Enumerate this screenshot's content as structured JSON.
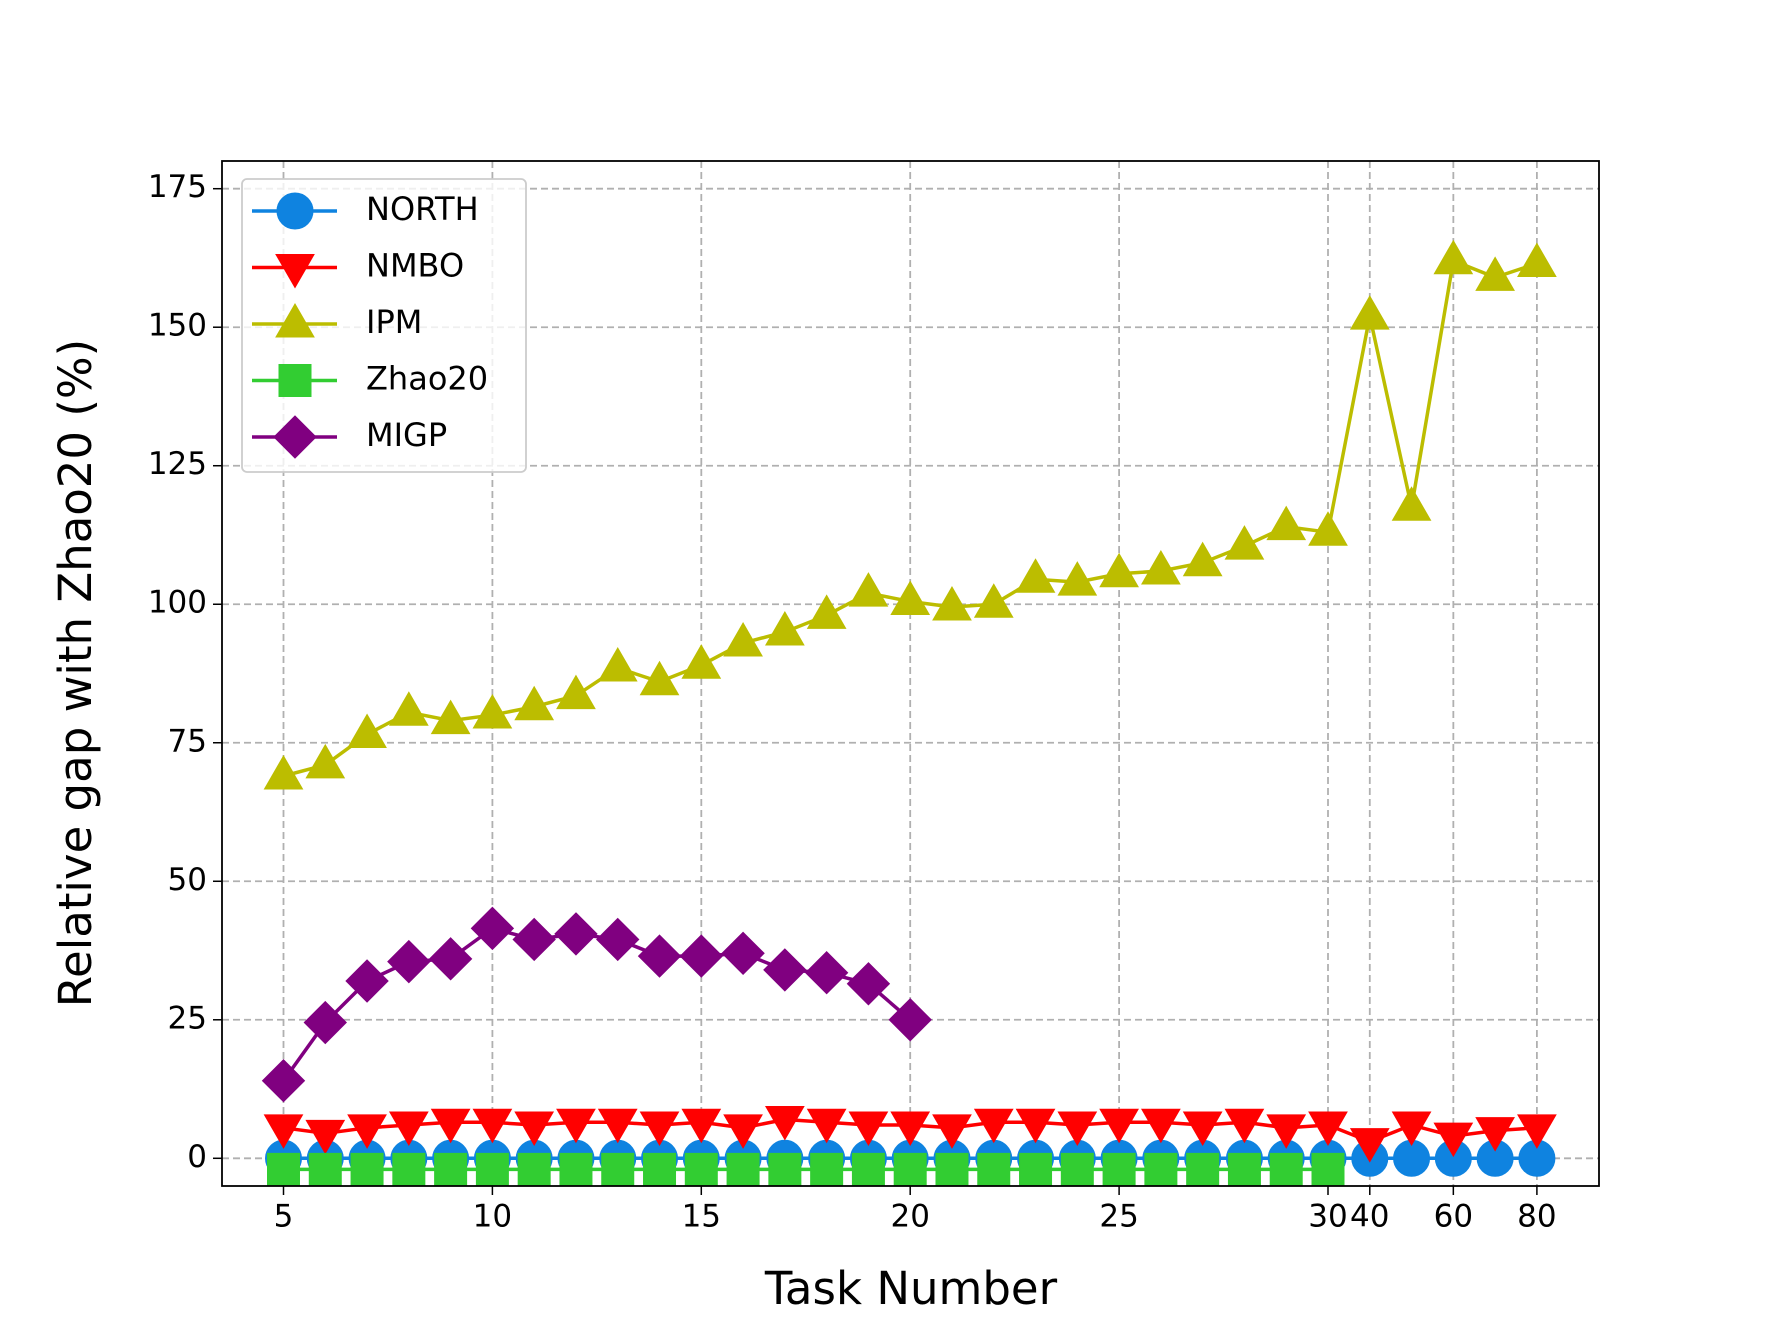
{
  "chart_data": {
    "type": "line",
    "xlabel": "Task Number",
    "ylabel": "Relative gap with Zhao20 (%)",
    "categories": [
      "5",
      null,
      null,
      null,
      null,
      "10",
      null,
      null,
      null,
      null,
      "15",
      null,
      null,
      null,
      null,
      "20",
      null,
      null,
      null,
      null,
      "25",
      null,
      null,
      null,
      null,
      "30",
      "40",
      null,
      "60",
      null,
      "80"
    ],
    "ylim": [
      -5,
      180
    ],
    "yticks": [
      0,
      25,
      50,
      75,
      100,
      125,
      150,
      175
    ],
    "grid": true,
    "legend": "upper left",
    "series": [
      {
        "name": "NORTH",
        "color": "#0f83e0",
        "marker": "circle",
        "values": [
          0,
          0,
          0,
          0,
          0,
          0,
          0,
          0,
          0,
          0,
          0,
          0,
          0,
          0,
          0,
          0,
          0,
          0,
          0,
          0,
          0,
          0,
          0,
          0,
          0,
          0,
          0,
          0,
          0,
          0,
          0
        ]
      },
      {
        "name": "NMBO",
        "color": "#ff0000",
        "marker": "triangle-down",
        "values": [
          5.5,
          4.5,
          5.5,
          6,
          6.5,
          6.5,
          6,
          6.5,
          6.5,
          6,
          6.5,
          5.5,
          7,
          6.5,
          6,
          6,
          5.5,
          6.5,
          6.5,
          6,
          6.5,
          6.5,
          6,
          6.5,
          5.5,
          6,
          3,
          6,
          4,
          5,
          5.5
        ]
      },
      {
        "name": "IPM",
        "color": "#bcbd00",
        "marker": "triangle-up",
        "values": [
          69,
          71,
          76.5,
          80.5,
          79,
          80,
          81.5,
          83.5,
          88.5,
          86,
          89,
          93,
          95,
          98,
          102,
          100.5,
          99.5,
          100,
          104.5,
          104,
          105.5,
          106,
          107.5,
          110.5,
          114,
          113,
          152,
          117.5,
          162,
          159,
          161.5
        ]
      },
      {
        "name": "Zhao20",
        "color": "#32cd32",
        "marker": "square",
        "values": [
          -2,
          -2,
          -2,
          -2,
          -2,
          -2,
          -2,
          -2,
          -2,
          -2,
          -2,
          -2,
          -2,
          -2,
          -2,
          -2,
          -2,
          -2,
          -2,
          -2,
          -2,
          -2,
          -2,
          -2,
          -2,
          -2,
          null,
          null,
          null,
          null,
          null
        ]
      },
      {
        "name": "MIGP",
        "color": "#800080",
        "marker": "diamond",
        "values": [
          14,
          24.5,
          32,
          35.5,
          36,
          41.5,
          39.5,
          40.5,
          39.5,
          36.5,
          36.5,
          37,
          34,
          33.5,
          31.5,
          25,
          null,
          null,
          null,
          null,
          null,
          null,
          null,
          null,
          null,
          null,
          null,
          null,
          null,
          null,
          null
        ]
      }
    ]
  }
}
